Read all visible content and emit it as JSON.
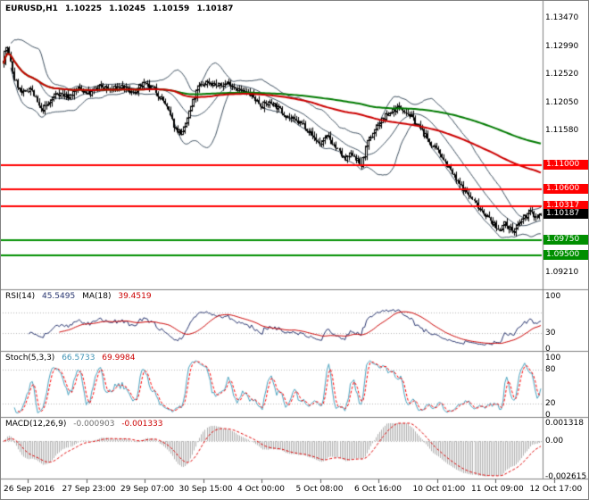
{
  "colors": {
    "background": "#ffffff",
    "border": "#808080",
    "candle": "#000000",
    "bollinger": "#3f5161",
    "ma_fast": "#cc0000",
    "ma_slow": "#007a00",
    "hline_red": "#ff0000",
    "hline_green": "#008f00",
    "rsi_line": "#26336e",
    "rsi_ma": "#cc0000",
    "stoch_main": "#4aa3c0",
    "stoch_signal": "#ff0000",
    "macd_hist": "#b0b0b0",
    "macd_signal": "#e00000",
    "level_dotted": "#b8b8b8",
    "tag_current_bg": "#000000"
  },
  "main_chart": {
    "title": {
      "symbol": "EURUSD,H1",
      "open": "1.10225",
      "high": "1.10245",
      "low": "1.10159",
      "close": "1.10187"
    },
    "y_axis": {
      "range": {
        "top": 1.136,
        "bottom": 1.09
      },
      "labels": [
        {
          "text": "1.13470",
          "price": 1.1347
        },
        {
          "text": "1.12990",
          "price": 1.1299
        },
        {
          "text": "1.12520",
          "price": 1.1252
        },
        {
          "text": "1.12050",
          "price": 1.1205
        },
        {
          "text": "1.11580",
          "price": 1.1158
        },
        {
          "text": "1.09210",
          "price": 1.0921
        }
      ]
    },
    "price_tags": [
      {
        "text": "1.11000",
        "price": 1.11,
        "bg": "#ff0000"
      },
      {
        "text": "1.10600",
        "price": 1.106,
        "bg": "#ff0000"
      },
      {
        "text": "1.10317",
        "price": 1.10317,
        "bg": "#ff0000"
      },
      {
        "text": "1.10187",
        "price": 1.10187,
        "bg": "#000000"
      },
      {
        "text": "1.09750",
        "price": 1.0975,
        "bg": "#008f00"
      },
      {
        "text": "1.09500",
        "price": 1.095,
        "bg": "#008f00"
      }
    ],
    "hlines": [
      {
        "price": 1.11,
        "color": "#ff0000"
      },
      {
        "price": 1.106,
        "color": "#ff0000"
      },
      {
        "price": 1.10317,
        "color": "#ff0000"
      },
      {
        "price": 1.0975,
        "color": "#008f00"
      },
      {
        "price": 1.095,
        "color": "#008f00"
      }
    ]
  },
  "panels": {
    "rsi": {
      "name": "RSI(14)",
      "value": "45.5495",
      "ma_name": "MA(18)",
      "ma_value": "39.4519",
      "period": 14,
      "ma_period": 18,
      "range": [
        0,
        100
      ],
      "levels": [
        30,
        70
      ],
      "axis": [
        {
          "text": "100",
          "v": 100
        },
        {
          "text": "30",
          "v": 30
        },
        {
          "text": "0",
          "v": 0
        }
      ]
    },
    "stoch": {
      "name": "Stoch(5,3,3)",
      "value": "66.5733",
      "signal_value": "69.9984",
      "k_period": 5,
      "d_period": 3,
      "slowing": 3,
      "range": [
        0,
        100
      ],
      "levels": [
        20,
        80
      ],
      "axis": [
        {
          "text": "100",
          "v": 100
        },
        {
          "text": "80",
          "v": 80
        },
        {
          "text": "20",
          "v": 20
        },
        {
          "text": "0",
          "v": 0
        }
      ]
    },
    "macd": {
      "name": "MACD(12,26,9)",
      "value": "-0.000903",
      "signal_value": "-0.001333",
      "fast": 12,
      "slow": 26,
      "signal": 9,
      "range": [
        -0.002615,
        0.001318
      ],
      "axis": [
        {
          "text": "0.001318",
          "v": 0.001318
        },
        {
          "text": "0.00",
          "v": 0
        },
        {
          "text": "-0.002615",
          "v": -0.002615
        }
      ]
    }
  },
  "time_axis": {
    "labels": [
      "26 Sep 2016",
      "27 Sep 23:00",
      "29 Sep 07:00",
      "30 Sep 15:00",
      "4 Oct 00:00",
      "5 Oct 08:00",
      "6 Oct 16:00",
      "10 Oct 01:00",
      "11 Oct 09:00",
      "12 Oct 17:00"
    ]
  },
  "chart_data": {
    "type": "candlestick",
    "title": "EURUSD,H1",
    "symbol": "EURUSD",
    "timeframe": "H1",
    "x_tick_labels": [
      "26 Sep 2016",
      "27 Sep 23:00",
      "29 Sep 07:00",
      "30 Sep 15:00",
      "4 Oct 00:00",
      "5 Oct 08:00",
      "6 Oct 16:00",
      "10 Oct 01:00",
      "11 Oct 09:00",
      "12 Oct 17:00"
    ],
    "y_range": [
      1.09,
      1.136
    ],
    "y_tick_values": [
      1.1347,
      1.1299,
      1.1252,
      1.1205,
      1.1158,
      1.0921
    ],
    "last_ohlc": {
      "open": 1.10225,
      "high": 1.10245,
      "low": 1.10159,
      "close": 1.10187
    },
    "current_price": 1.10187,
    "support_resistance": [
      1.11,
      1.106,
      1.10317,
      1.0975,
      1.095
    ],
    "candle_count": 300,
    "seed": 7,
    "noise": 0.001,
    "wick": 0.0007,
    "price_path": [
      [
        0.0,
        1.1275
      ],
      [
        0.006,
        1.13
      ],
      [
        0.02,
        1.1245
      ],
      [
        0.035,
        1.1218
      ],
      [
        0.05,
        1.123
      ],
      [
        0.07,
        1.1192
      ],
      [
        0.085,
        1.1202
      ],
      [
        0.1,
        1.1222
      ],
      [
        0.12,
        1.1215
      ],
      [
        0.14,
        1.1228
      ],
      [
        0.16,
        1.122
      ],
      [
        0.18,
        1.1232
      ],
      [
        0.2,
        1.1226
      ],
      [
        0.22,
        1.1232
      ],
      [
        0.24,
        1.122
      ],
      [
        0.26,
        1.1235
      ],
      [
        0.28,
        1.1228
      ],
      [
        0.3,
        1.1205
      ],
      [
        0.32,
        1.1162
      ],
      [
        0.335,
        1.1152
      ],
      [
        0.35,
        1.1195
      ],
      [
        0.365,
        1.1232
      ],
      [
        0.38,
        1.124
      ],
      [
        0.4,
        1.1232
      ],
      [
        0.42,
        1.1238
      ],
      [
        0.44,
        1.1225
      ],
      [
        0.46,
        1.1218
      ],
      [
        0.48,
        1.12
      ],
      [
        0.5,
        1.1205
      ],
      [
        0.52,
        1.1188
      ],
      [
        0.54,
        1.1175
      ],
      [
        0.56,
        1.1168
      ],
      [
        0.575,
        1.115
      ],
      [
        0.59,
        1.1135
      ],
      [
        0.605,
        1.1148
      ],
      [
        0.62,
        1.1128
      ],
      [
        0.635,
        1.1108
      ],
      [
        0.65,
        1.112
      ],
      [
        0.665,
        1.1098
      ],
      [
        0.68,
        1.114
      ],
      [
        0.695,
        1.1165
      ],
      [
        0.71,
        1.118
      ],
      [
        0.725,
        1.1192
      ],
      [
        0.74,
        1.1198
      ],
      [
        0.755,
        1.1185
      ],
      [
        0.77,
        1.1168
      ],
      [
        0.785,
        1.115
      ],
      [
        0.8,
        1.113
      ],
      [
        0.815,
        1.1118
      ],
      [
        0.83,
        1.1095
      ],
      [
        0.845,
        1.1072
      ],
      [
        0.86,
        1.1058
      ],
      [
        0.875,
        1.104
      ],
      [
        0.89,
        1.1025
      ],
      [
        0.905,
        1.1008
      ],
      [
        0.92,
        1.0992
      ],
      [
        0.935,
        1.1002
      ],
      [
        0.95,
        1.0988
      ],
      [
        0.965,
        1.1008
      ],
      [
        0.98,
        1.1022
      ],
      [
        0.992,
        1.1012
      ],
      [
        1.0,
        1.10187
      ]
    ],
    "overlays": {
      "bollinger": {
        "period": 20,
        "deviation": 2
      },
      "ma_fast_period": 96,
      "ma_slow_period": 200
    },
    "indicator_panels": [
      {
        "name": "RSI(14)",
        "last_value": 45.5495,
        "ma": {
          "period": 18,
          "last_value": 39.4519
        },
        "scale": [
          0,
          100
        ],
        "levels": [
          30,
          70
        ]
      },
      {
        "name": "Stoch(5,3,3)",
        "last_main": 66.5733,
        "last_signal": 69.9984,
        "scale": [
          0,
          100
        ],
        "levels": [
          20,
          80
        ]
      },
      {
        "name": "MACD(12,26,9)",
        "last_main": -0.000903,
        "last_signal": -0.001333,
        "scale": [
          -0.002615,
          0.001318
        ]
      }
    ]
  }
}
